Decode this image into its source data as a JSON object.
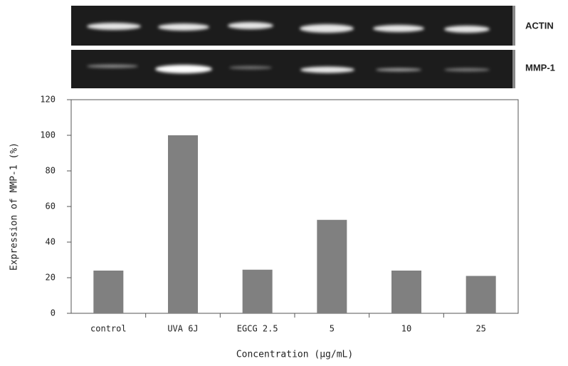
{
  "chart_data": {
    "type": "bar",
    "gel_labels": [
      "ACTIN",
      "MMP-1"
    ],
    "ylabel": "Expression of MMP-1 (%)",
    "xlabel": "Concentration (μg/mL)",
    "categories": [
      "control",
      "UVA 6J",
      "EGCG 2.5",
      "5",
      "10",
      "25"
    ],
    "values": [
      24,
      100,
      24.5,
      52.5,
      24,
      21
    ],
    "color": "#808080",
    "ylim": [
      0,
      120
    ],
    "yticks": [
      0,
      20,
      40,
      60,
      80,
      100,
      120
    ],
    "grid": false
  }
}
